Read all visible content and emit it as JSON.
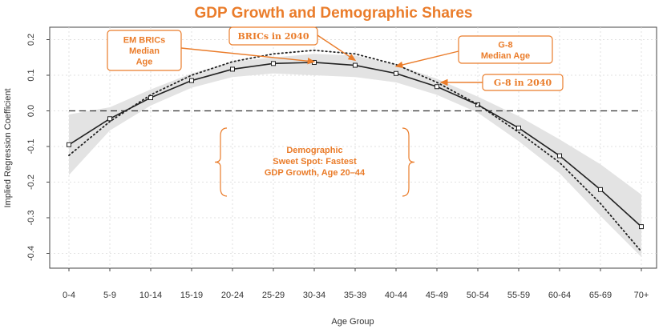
{
  "colors": {
    "accent": "#ea7c2a",
    "band": "#e3e3e3",
    "line": "#222222",
    "frame": "#444444"
  },
  "chart_data": {
    "type": "line",
    "title": "GDP Growth and Demographic Shares",
    "xlabel": "Age Group",
    "ylabel": "Implied Regression Coefficient",
    "categories": [
      "0-4",
      "5-9",
      "10-14",
      "15-19",
      "20-24",
      "25-29",
      "30-34",
      "35-39",
      "40-44",
      "45-49",
      "50-54",
      "55-59",
      "60-64",
      "65-69",
      "70+"
    ],
    "ylim": [
      -0.45,
      0.22
    ],
    "yticks": [
      -0.4,
      -0.3,
      -0.2,
      -0.1,
      0.0,
      0.1,
      0.2
    ],
    "ytick_labels": [
      "-0.4",
      "-0.3",
      "-0.2",
      "-0.1",
      "0.0",
      "0.1",
      "0.2"
    ],
    "reference_line": 0.0,
    "grid": true,
    "series": [
      {
        "style": "solid-with-markers",
        "values": [
          -0.095,
          -0.022,
          0.037,
          0.085,
          0.117,
          0.133,
          0.136,
          0.128,
          0.105,
          0.068,
          0.017,
          -0.048,
          -0.126,
          -0.221,
          -0.325
        ]
      },
      {
        "style": "dotted",
        "values": [
          -0.125,
          -0.03,
          0.045,
          0.1,
          0.138,
          0.16,
          0.17,
          0.16,
          0.13,
          0.08,
          0.018,
          -0.06,
          -0.145,
          -0.26,
          -0.395
        ]
      }
    ],
    "confidence_band": {
      "lower": [
        -0.18,
        -0.055,
        0.015,
        0.065,
        0.095,
        0.105,
        0.1,
        0.095,
        0.08,
        0.045,
        -0.005,
        -0.085,
        -0.175,
        -0.295,
        -0.41
      ],
      "upper": [
        -0.01,
        0.01,
        0.06,
        0.105,
        0.138,
        0.15,
        0.16,
        0.155,
        0.13,
        0.09,
        0.04,
        -0.015,
        -0.08,
        -0.15,
        -0.235
      ]
    },
    "annotations": [
      {
        "lines": [
          "EM BRICs",
          "Median",
          "Age"
        ],
        "style": "box",
        "font": "sans",
        "target": {
          "x_index": 6,
          "y": 0.138
        }
      },
      {
        "lines": [
          "BRICs in 2040"
        ],
        "style": "box",
        "font": "serif",
        "target": {
          "x_index": 7.0,
          "y": 0.142
        }
      },
      {
        "lines": [
          "G-8",
          "Median Age"
        ],
        "style": "box",
        "font": "sans",
        "target": {
          "x_index": 8.0,
          "y": 0.125
        }
      },
      {
        "lines": [
          "G-8 in 2040"
        ],
        "style": "box",
        "font": "serif",
        "target": {
          "x_index": 9.1,
          "y": 0.08
        }
      },
      {
        "lines": [
          "Demographic",
          "Sweet Spot: Fastest",
          "GDP Growth, Age 20–44"
        ],
        "style": "brace",
        "font": "sans"
      }
    ]
  }
}
